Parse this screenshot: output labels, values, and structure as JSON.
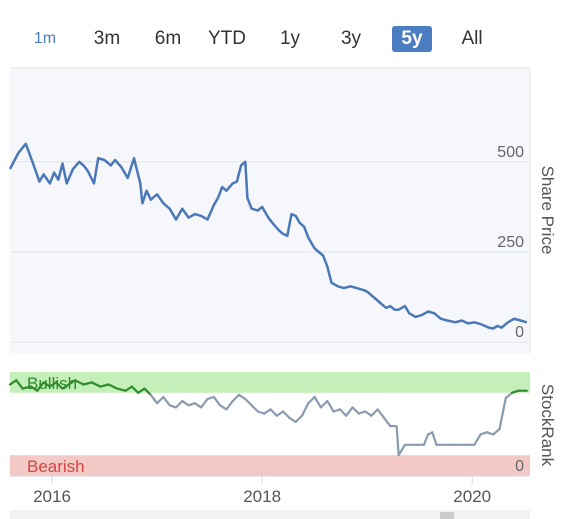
{
  "range_buttons": [
    {
      "label": "1m",
      "selected": false
    },
    {
      "label": "3m",
      "selected": false
    },
    {
      "label": "6m",
      "selected": false
    },
    {
      "label": "YTD",
      "selected": false
    },
    {
      "label": "1y",
      "selected": false
    },
    {
      "label": "3y",
      "selected": false
    },
    {
      "label": "5y",
      "selected": true
    },
    {
      "label": "All",
      "selected": false
    }
  ],
  "colors": {
    "accent": "#4a7ec0",
    "price_line": "#4a78b8",
    "bullish_fill": "#c5efb8",
    "bearish_fill": "#f2c9c4",
    "bullish_text": "#2e8b2e",
    "bearish_text": "#d64545"
  },
  "chart_data": [
    {
      "type": "line",
      "ylabel": "Share Price",
      "yticks": [
        0,
        250,
        500
      ],
      "ylim": [
        -30,
        760
      ],
      "xlim": [
        2015.6,
        2020.55
      ],
      "xticks": [
        "2016",
        "2018",
        "2020"
      ],
      "grid": true,
      "series": [
        {
          "x": [
            2015.6,
            2015.68,
            2015.75,
            2015.82,
            2015.88,
            2015.92,
            2015.98,
            2016.02,
            2016.06,
            2016.1,
            2016.14,
            2016.2,
            2016.26,
            2016.3,
            2016.34,
            2016.4,
            2016.44,
            2016.5,
            2016.56,
            2016.6,
            2016.66,
            2016.72,
            2016.78,
            2016.84,
            2016.86,
            2016.9,
            2016.94,
            2017.0,
            2017.06,
            2017.12,
            2017.18,
            2017.24,
            2017.3,
            2017.36,
            2017.42,
            2017.48,
            2017.54,
            2017.58,
            2017.62,
            2017.66,
            2017.72,
            2017.76,
            2017.8,
            2017.84,
            2017.86,
            2017.9,
            2017.96,
            2018.0,
            2018.06,
            2018.1,
            2018.16,
            2018.2,
            2018.24,
            2018.28,
            2018.32,
            2018.36,
            2018.4,
            2018.44,
            2018.5,
            2018.54,
            2018.58,
            2018.62,
            2018.66,
            2018.72,
            2018.78,
            2018.84,
            2018.9,
            2018.96,
            2019.0,
            2019.06,
            2019.12,
            2019.18,
            2019.22,
            2019.26,
            2019.3,
            2019.36,
            2019.4,
            2019.46,
            2019.52,
            2019.58,
            2019.64,
            2019.7,
            2019.76,
            2019.8,
            2019.84,
            2019.9,
            2019.96,
            2020.02,
            2020.08,
            2020.12,
            2020.16,
            2020.2,
            2020.24,
            2020.28,
            2020.34,
            2020.4,
            2020.46,
            2020.52
          ],
          "y": [
            480,
            525,
            550,
            495,
            445,
            465,
            440,
            470,
            450,
            495,
            440,
            480,
            500,
            490,
            475,
            440,
            510,
            505,
            490,
            505,
            485,
            455,
            510,
            440,
            385,
            420,
            395,
            410,
            385,
            370,
            340,
            370,
            345,
            355,
            350,
            340,
            380,
            400,
            430,
            420,
            440,
            445,
            490,
            500,
            400,
            370,
            365,
            375,
            345,
            330,
            310,
            300,
            295,
            355,
            350,
            330,
            320,
            290,
            260,
            250,
            240,
            210,
            165,
            155,
            150,
            155,
            150,
            145,
            140,
            125,
            110,
            95,
            100,
            90,
            90,
            100,
            80,
            70,
            75,
            85,
            80,
            65,
            60,
            58,
            55,
            60,
            52,
            55,
            50,
            45,
            40,
            38,
            45,
            40,
            55,
            65,
            60,
            55
          ]
        }
      ]
    },
    {
      "type": "line",
      "ylabel": "StockRank",
      "yticks": [
        0
      ],
      "zones": [
        {
          "label": "Bullish",
          "from": 80,
          "to": 100
        },
        {
          "label": "Bearish",
          "from": 0,
          "to": 20
        }
      ],
      "ylim": [
        0,
        100
      ],
      "xlim": [
        2015.6,
        2020.55
      ],
      "series": [
        {
          "x": [
            2015.6,
            2015.66,
            2015.72,
            2015.8,
            2015.86,
            2015.92,
            2015.98,
            2016.04,
            2016.1,
            2016.16,
            2016.22,
            2016.3,
            2016.38,
            2016.46,
            2016.54,
            2016.62,
            2016.7,
            2016.76,
            2016.82,
            2016.88,
            2016.94,
            2017.0,
            2017.06,
            2017.12,
            2017.18,
            2017.24,
            2017.3,
            2017.36,
            2017.42,
            2017.48,
            2017.54,
            2017.6,
            2017.66,
            2017.72,
            2017.78,
            2017.84,
            2017.9,
            2017.96,
            2018.02,
            2018.08,
            2018.14,
            2018.2,
            2018.26,
            2018.32,
            2018.38,
            2018.44,
            2018.5,
            2018.56,
            2018.62,
            2018.68,
            2018.74,
            2018.8,
            2018.86,
            2018.92,
            2018.98,
            2019.04,
            2019.1,
            2019.16,
            2019.22,
            2019.28,
            2019.3,
            2019.36,
            2019.42,
            2019.48,
            2019.54,
            2019.58,
            2019.62,
            2019.66,
            2019.72,
            2019.78,
            2019.84,
            2019.9,
            2019.96,
            2020.02,
            2020.08,
            2020.14,
            2020.2,
            2020.26,
            2020.32,
            2020.38,
            2020.44,
            2020.52
          ],
          "y": [
            88,
            92,
            84,
            86,
            82,
            90,
            86,
            90,
            84,
            88,
            92,
            88,
            90,
            86,
            88,
            84,
            82,
            86,
            80,
            84,
            78,
            70,
            76,
            68,
            66,
            72,
            68,
            70,
            66,
            74,
            76,
            68,
            64,
            72,
            78,
            74,
            68,
            62,
            60,
            64,
            58,
            62,
            56,
            52,
            58,
            70,
            76,
            66,
            72,
            62,
            64,
            58,
            66,
            60,
            62,
            58,
            64,
            56,
            48,
            48,
            20,
            30,
            30,
            30,
            30,
            40,
            42,
            30,
            30,
            30,
            30,
            30,
            30,
            30,
            40,
            42,
            40,
            45,
            75,
            80,
            82,
            82
          ]
        }
      ]
    }
  ]
}
